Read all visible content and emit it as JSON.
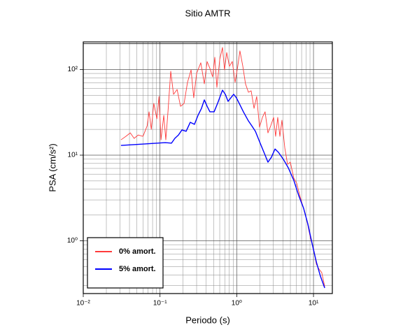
{
  "chart_data": {
    "type": "line",
    "title": "Sitio AMTR",
    "x_label": "Periodo (s)",
    "y_label": "PSA (cm/s²)",
    "log_x": true,
    "log_y": true,
    "grid": true,
    "legend": "lower left",
    "xlim": [
      0.01,
      17.6
    ],
    "ylim": [
      0.242,
      210
    ],
    "xticks": [
      {
        "value": 0.01,
        "label": "10⁻²"
      },
      {
        "value": 0.1,
        "label": "10⁻¹"
      },
      {
        "value": 1,
        "label": "10⁰"
      },
      {
        "value": 10,
        "label": "10¹"
      }
    ],
    "yticks": [
      {
        "value": 1,
        "label": "10⁰"
      },
      {
        "value": 10,
        "label": "10¹"
      },
      {
        "value": 100,
        "label": "10²"
      }
    ],
    "series": [
      {
        "name": "0% amort.",
        "color": "#ff3b3b",
        "x": [
          0.031,
          0.036,
          0.041,
          0.046,
          0.052,
          0.06,
          0.068,
          0.072,
          0.077,
          0.083,
          0.091,
          0.097,
          0.103,
          0.112,
          0.119,
          0.127,
          0.138,
          0.15,
          0.167,
          0.185,
          0.206,
          0.228,
          0.254,
          0.275,
          0.3,
          0.34,
          0.378,
          0.411,
          0.447,
          0.485,
          0.518,
          0.551,
          0.6,
          0.652,
          0.693,
          0.74,
          0.803,
          0.875,
          0.951,
          1.03,
          1.1,
          1.2,
          1.3,
          1.42,
          1.54,
          1.68,
          1.82,
          1.98,
          2.16,
          2.34,
          2.55,
          2.77,
          3.02,
          3.21,
          3.42,
          3.65,
          3.88,
          4.23,
          4.59,
          4.99,
          5.54,
          6.04,
          6.56,
          7.14,
          7.76,
          8.43,
          9.18,
          9.98,
          10.9,
          11.8,
          12.8,
          14.0
        ],
        "values": [
          15.1,
          16.6,
          18.2,
          15.7,
          17.2,
          16.6,
          22.0,
          32.1,
          20.0,
          40.2,
          26.6,
          48.5,
          15.1,
          29.2,
          15.1,
          32.1,
          95.5,
          51.3,
          58.5,
          37.2,
          40.2,
          70.6,
          99.1,
          46.7,
          90.2,
          120,
          68.1,
          124,
          103,
          82.0,
          139,
          61.9,
          131,
          181,
          99.1,
          158,
          109,
          124,
          70.6,
          109,
          165,
          109,
          68.1,
          54.3,
          56.4,
          35.2,
          48.5,
          21.2,
          27.6,
          32.1,
          18.2,
          22.0,
          27.6,
          16.6,
          27.6,
          16.6,
          25.6,
          12.1,
          7.83,
          8.29,
          5.38,
          4.71,
          3.49,
          2.68,
          2.1,
          1.53,
          1.05,
          0.82,
          0.533,
          0.467,
          0.426,
          0.292
        ]
      },
      {
        "name": "5% amort.",
        "color": "#0000ff",
        "x": [
          0.031,
          0.061,
          0.117,
          0.141,
          0.156,
          0.174,
          0.193,
          0.219,
          0.248,
          0.281,
          0.313,
          0.347,
          0.378,
          0.411,
          0.447,
          0.507,
          0.562,
          0.652,
          0.71,
          0.771,
          0.838,
          0.912,
          0.99,
          1.1,
          1.22,
          1.42,
          1.57,
          1.75,
          2.02,
          2.3,
          2.55,
          2.83,
          3.15,
          3.49,
          4.05,
          4.69,
          5.54,
          6.43,
          7.43,
          8.43,
          9.57,
          10.9,
          12.3,
          14.0
        ],
        "values": [
          13.0,
          13.5,
          14.0,
          13.8,
          15.7,
          17.2,
          19.7,
          19.0,
          24.2,
          22.9,
          29.2,
          35.2,
          44.2,
          37.2,
          32.1,
          32.1,
          40.2,
          57.4,
          51.3,
          42.5,
          46.7,
          51.3,
          46.7,
          38.7,
          32.1,
          25.1,
          22.0,
          19.0,
          13.8,
          10.4,
          8.29,
          9.46,
          11.8,
          10.8,
          8.94,
          7.13,
          5.08,
          3.36,
          2.4,
          1.58,
          0.935,
          0.564,
          0.387,
          0.281
        ]
      }
    ]
  }
}
